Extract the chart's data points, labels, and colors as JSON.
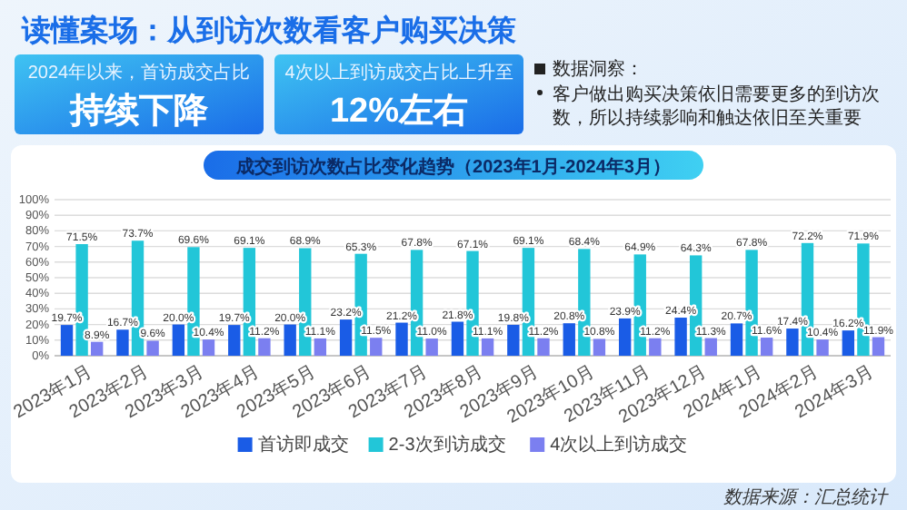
{
  "chart_data": {
    "type": "bar",
    "title": "读懂案场：从到访次数看客户购买决策",
    "subtitle": "成交到访次数占比变化趋势（2023年1月-2024年3月）",
    "annotations": [
      "2024年以来，首访成交占比",
      "持续下降",
      "4次以上到访成交占比上升至",
      "12%左右",
      "数据洞察：",
      "客户做出购买决策依旧需要更多的到访次数，所以持续影响和触达依旧至关重要",
      "数据来源：汇总统计"
    ],
    "categories": [
      "2023年1月",
      "2023年2月",
      "2023年3月",
      "2023年4月",
      "2023年5月",
      "2023年6月",
      "2023年7月",
      "2023年8月",
      "2023年9月",
      "2023年10月",
      "2023年11月",
      "2023年12月",
      "2024年1月",
      "2024年2月",
      "2024年3月"
    ],
    "series": [
      {
        "name": "首访即成交",
        "color": "#1a5ce6",
        "values": [
          19.7,
          16.7,
          20.0,
          19.7,
          20.0,
          23.2,
          21.2,
          21.8,
          19.8,
          20.8,
          23.9,
          24.4,
          20.7,
          17.4,
          16.2
        ],
        "value_labels": [
          "19.7%",
          "16.7%",
          "20.0%",
          "19.7%",
          "20.0%",
          "23.2%",
          "21.2%",
          "21.8%",
          "19.8%",
          "20.8%",
          "23.9%",
          "24.4%",
          "20.7%",
          "17.4%",
          "16.2%"
        ]
      },
      {
        "name": "2-3次到访成交",
        "color": "#22c6d8",
        "values": [
          71.5,
          73.7,
          69.6,
          69.1,
          68.9,
          65.3,
          67.8,
          67.1,
          69.1,
          68.4,
          64.9,
          64.3,
          67.8,
          72.2,
          71.9
        ],
        "value_labels": [
          "71.5%",
          "73.7%",
          "69.6%",
          "69.1%",
          "68.9%",
          "65.3%",
          "67.8%",
          "67.1%",
          "69.1%",
          "68.4%",
          "64.9%",
          "64.3%",
          "67.8%",
          "72.2%",
          "71.9%"
        ]
      },
      {
        "name": "4次以上到访成交",
        "color": "#7b7ff0",
        "values": [
          8.9,
          9.6,
          10.4,
          11.2,
          11.1,
          11.5,
          11.0,
          11.1,
          11.2,
          10.8,
          11.2,
          11.3,
          11.6,
          10.4,
          11.9
        ],
        "value_labels": [
          "8.9%",
          "9.6%",
          "10.4%",
          "11.2%",
          "11.1%",
          "11.5%",
          "11.0%",
          "11.1%",
          "11.2%",
          "10.8%",
          "11.2%",
          "11.3%",
          "11.6%",
          "10.4%",
          "11.9%"
        ]
      }
    ],
    "ylim": [
      0,
      100
    ],
    "yticks": [
      {
        "value": 0,
        "label": "0%"
      },
      {
        "value": 10,
        "label": "10%"
      },
      {
        "value": 20,
        "label": "20%"
      },
      {
        "value": 30,
        "label": "30%"
      },
      {
        "value": 40,
        "label": "40%"
      },
      {
        "value": 50,
        "label": "50%"
      },
      {
        "value": 60,
        "label": "60%"
      },
      {
        "value": 70,
        "label": "70%"
      },
      {
        "value": 80,
        "label": "80%"
      },
      {
        "value": 90,
        "label": "90%"
      },
      {
        "value": 100,
        "label": "100%"
      }
    ],
    "grid": "y",
    "legend": "bottom"
  }
}
